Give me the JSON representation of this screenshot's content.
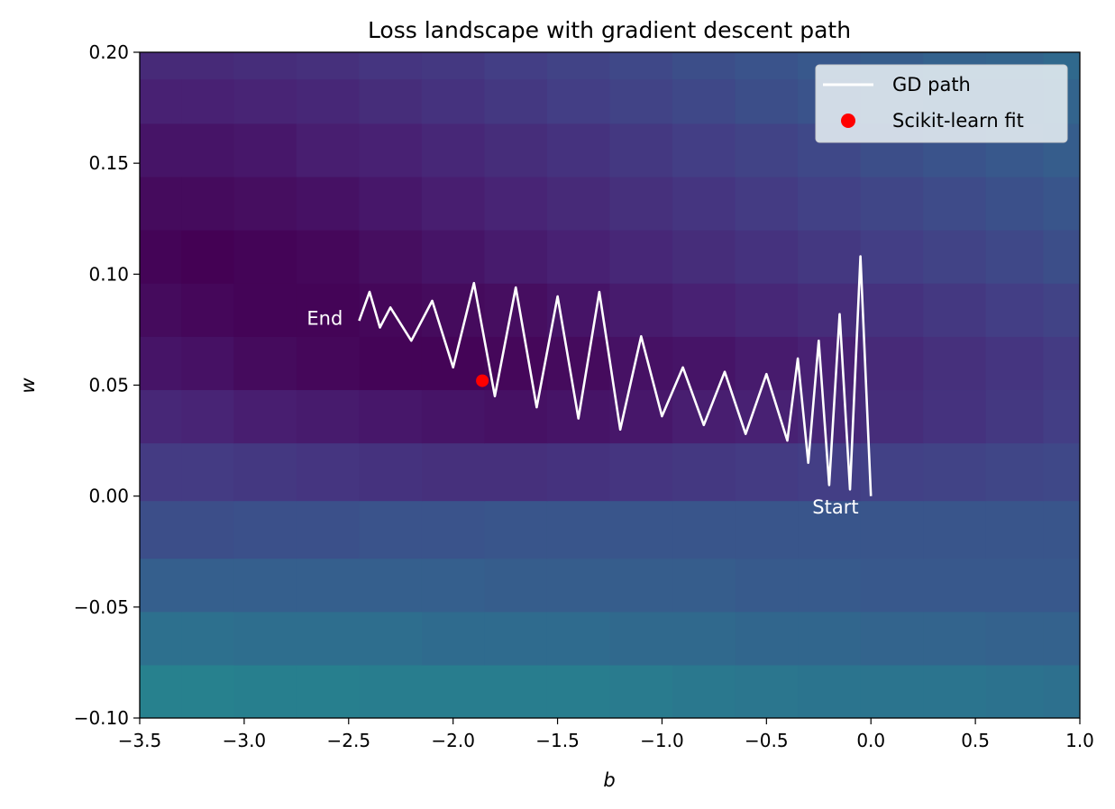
{
  "chart_data": {
    "type": "heatmap",
    "title": "Loss landscape with gradient descent path",
    "xlabel": "b",
    "ylabel": "w",
    "xlim": [
      -3.5,
      1.0
    ],
    "ylim": [
      -0.1,
      0.2
    ],
    "x_ticks": [
      -3.5,
      -3.0,
      -2.5,
      -2.0,
      -1.5,
      -1.0,
      -0.5,
      0.0,
      0.5,
      1.0
    ],
    "x_tick_labels": [
      "−3.5",
      "−3.0",
      "−2.5",
      "−2.0",
      "−1.5",
      "−1.0",
      "−0.5",
      "0.0",
      "0.5",
      "1.0"
    ],
    "y_ticks": [
      -0.1,
      -0.05,
      0.0,
      0.05,
      0.1,
      0.15,
      0.2
    ],
    "y_tick_labels": [
      "−0.10",
      "−0.05",
      "0.00",
      "0.05",
      "0.10",
      "0.15",
      "0.20"
    ],
    "colormap": "viridis",
    "heatmap": {
      "b_centers": [
        -3.4,
        -3.2,
        -2.9,
        -2.6,
        -2.3,
        -2.0,
        -1.7,
        -1.4,
        -1.1,
        -0.8,
        -0.5,
        -0.2,
        0.1,
        0.4,
        0.7,
        0.95
      ],
      "w_centers": [
        -0.088,
        -0.064,
        -0.04,
        -0.016,
        0.012,
        0.036,
        0.06,
        0.084,
        0.108,
        0.132,
        0.156,
        0.18,
        0.196
      ],
      "levels": [
        [
          0.48,
          0.48,
          0.47,
          0.47,
          0.46,
          0.46,
          0.46,
          0.46,
          0.45,
          0.44,
          0.43,
          0.42,
          0.42,
          0.42,
          0.41,
          0.4
        ],
        [
          0.4,
          0.4,
          0.39,
          0.39,
          0.39,
          0.38,
          0.38,
          0.38,
          0.37,
          0.37,
          0.36,
          0.36,
          0.35,
          0.35,
          0.34,
          0.34
        ],
        [
          0.33,
          0.33,
          0.33,
          0.33,
          0.33,
          0.33,
          0.32,
          0.32,
          0.32,
          0.32,
          0.31,
          0.31,
          0.3,
          0.3,
          0.3,
          0.3
        ],
        [
          0.26,
          0.26,
          0.27,
          0.27,
          0.28,
          0.28,
          0.29,
          0.29,
          0.29,
          0.29,
          0.29,
          0.29,
          0.29,
          0.29,
          0.29,
          0.29
        ],
        [
          0.19,
          0.19,
          0.18,
          0.17,
          0.16,
          0.15,
          0.15,
          0.16,
          0.17,
          0.18,
          0.19,
          0.2,
          0.21,
          0.22,
          0.23,
          0.24
        ],
        [
          0.12,
          0.11,
          0.09,
          0.08,
          0.07,
          0.06,
          0.05,
          0.06,
          0.07,
          0.09,
          0.1,
          0.12,
          0.14,
          0.16,
          0.18,
          0.2
        ],
        [
          0.06,
          0.05,
          0.03,
          0.02,
          0.01,
          0.01,
          0.02,
          0.03,
          0.05,
          0.06,
          0.08,
          0.1,
          0.13,
          0.15,
          0.17,
          0.19
        ],
        [
          0.03,
          0.02,
          0.01,
          0.01,
          0.02,
          0.03,
          0.04,
          0.06,
          0.08,
          0.1,
          0.12,
          0.14,
          0.16,
          0.18,
          0.2,
          0.22
        ],
        [
          0.01,
          0.0,
          0.01,
          0.02,
          0.04,
          0.06,
          0.08,
          0.1,
          0.12,
          0.14,
          0.16,
          0.18,
          0.2,
          0.22,
          0.24,
          0.26
        ],
        [
          0.03,
          0.03,
          0.04,
          0.05,
          0.07,
          0.09,
          0.11,
          0.13,
          0.15,
          0.17,
          0.19,
          0.21,
          0.23,
          0.25,
          0.27,
          0.29
        ],
        [
          0.06,
          0.06,
          0.07,
          0.09,
          0.1,
          0.12,
          0.14,
          0.16,
          0.18,
          0.2,
          0.22,
          0.24,
          0.26,
          0.28,
          0.3,
          0.32
        ],
        [
          0.1,
          0.1,
          0.11,
          0.12,
          0.14,
          0.16,
          0.18,
          0.2,
          0.22,
          0.24,
          0.26,
          0.28,
          0.3,
          0.32,
          0.33,
          0.35
        ],
        [
          0.13,
          0.13,
          0.14,
          0.15,
          0.17,
          0.18,
          0.2,
          0.22,
          0.24,
          0.26,
          0.28,
          0.3,
          0.32,
          0.34,
          0.35,
          0.37
        ]
      ]
    },
    "series": [
      {
        "name": "GD path",
        "type": "line",
        "color": "#ffffff",
        "x": [
          0.0,
          -0.05,
          -0.1,
          -0.15,
          -0.2,
          -0.25,
          -0.3,
          -0.35,
          -0.4,
          -0.5,
          -0.6,
          -0.7,
          -0.8,
          -0.9,
          -1.0,
          -1.1,
          -1.2,
          -1.3,
          -1.4,
          -1.5,
          -1.6,
          -1.7,
          -1.8,
          -1.9,
          -2.0,
          -2.1,
          -2.2,
          -2.3,
          -2.35,
          -2.4,
          -2.45
        ],
        "y": [
          0.0,
          0.108,
          0.003,
          0.082,
          0.005,
          0.07,
          0.015,
          0.062,
          0.025,
          0.055,
          0.028,
          0.056,
          0.032,
          0.058,
          0.036,
          0.072,
          0.03,
          0.092,
          0.035,
          0.09,
          0.04,
          0.094,
          0.045,
          0.096,
          0.058,
          0.088,
          0.07,
          0.085,
          0.076,
          0.092,
          0.079
        ]
      },
      {
        "name": "Scikit-learn fit",
        "type": "scatter",
        "color": "#ff0000",
        "x": [
          -1.86
        ],
        "y": [
          0.052
        ]
      }
    ],
    "annotations": [
      {
        "text": "Start",
        "x": -0.28,
        "y": -0.005
      },
      {
        "text": "End",
        "x": -2.7,
        "y": 0.08
      }
    ],
    "legend": {
      "placement": "top-right",
      "entries": [
        "GD path",
        "Scikit-learn fit"
      ]
    },
    "grid": false
  }
}
